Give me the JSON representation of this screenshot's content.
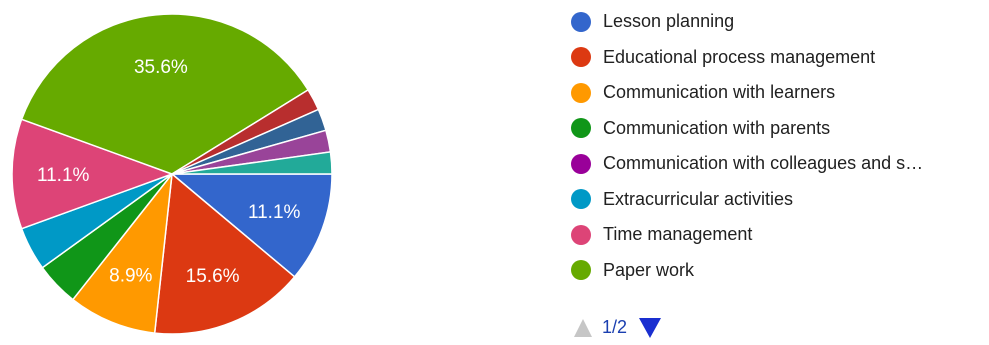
{
  "chart_data": {
    "type": "pie",
    "slices": [
      {
        "name": "Lesson planning",
        "value": 11.1,
        "color": "#3366CC",
        "label": "11.1%"
      },
      {
        "name": "Educational process management",
        "value": 15.6,
        "color": "#DC3912",
        "label": "15.6%"
      },
      {
        "name": "Communication with learners",
        "value": 8.9,
        "color": "#FF9900",
        "label": "8.9%"
      },
      {
        "name": "Communication with parents",
        "value": 4.4,
        "color": "#109618",
        "label": ""
      },
      {
        "name": "Communication with colleagues and s…",
        "value": 4.4,
        "color": "#0099C6",
        "label": ""
      },
      {
        "name": "Extracurricular activities",
        "value": 11.1,
        "color": "#DD4477",
        "label": "11.1%"
      },
      {
        "name": "Time management",
        "value": 35.6,
        "color": "#66AA00",
        "label": "35.6%"
      },
      {
        "name": "Paper work",
        "value": 2.2,
        "color": "#B82E2E",
        "label": ""
      },
      {
        "name": "",
        "value": 2.2,
        "color": "#316395",
        "label": ""
      },
      {
        "name": "",
        "value": 2.2,
        "color": "#994499",
        "label": ""
      },
      {
        "name": "",
        "value": 2.2,
        "color": "#22AA99",
        "label": ""
      }
    ],
    "legend": {
      "placement": "right",
      "entries": [
        {
          "label": "Lesson planning",
          "color": "#3366CC"
        },
        {
          "label": "Educational process management",
          "color": "#DC3912"
        },
        {
          "label": "Communication with learners",
          "color": "#FF9900"
        },
        {
          "label": "Communication with parents",
          "color": "#109618"
        },
        {
          "label": "Communication with colleagues and s…",
          "color": "#990099"
        },
        {
          "label": "Extracurricular activities",
          "color": "#0099C6"
        },
        {
          "label": "Time management",
          "color": "#DD4477"
        },
        {
          "label": "Paper work",
          "color": "#66AA00"
        }
      ]
    }
  },
  "pager": {
    "text": "1/2"
  }
}
